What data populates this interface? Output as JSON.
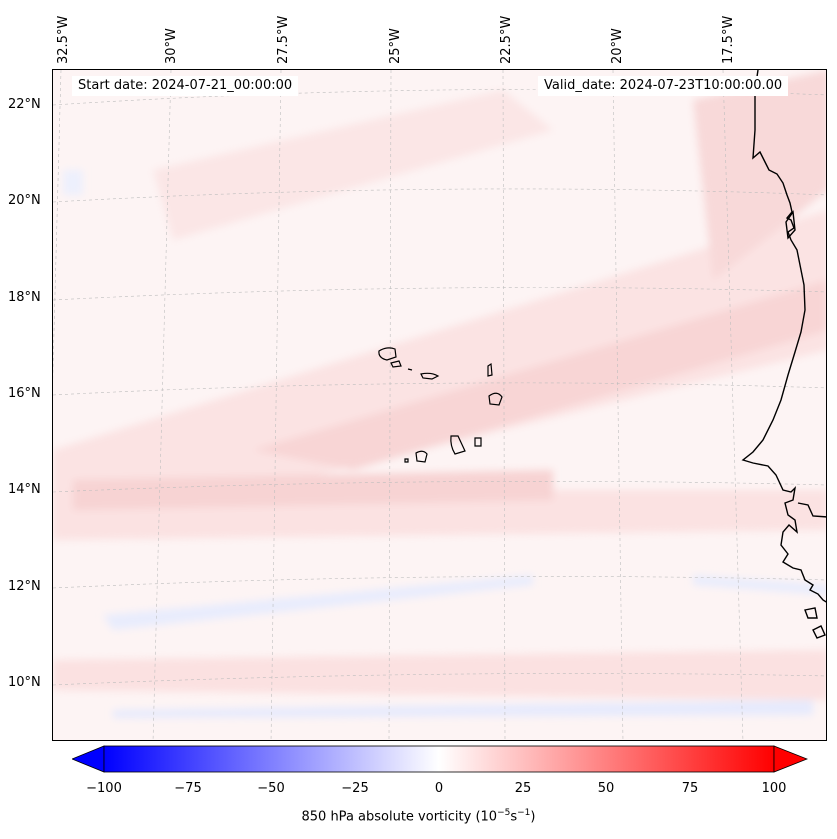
{
  "header": {
    "start_date": "Start date: 2024-07-21_00:00:00",
    "valid_date": "Valid_date: 2024-07-23T10:00:00.00"
  },
  "map": {
    "longitude_labels": [
      "32.5°W",
      "30°W",
      "27.5°W",
      "25°W",
      "22.5°W",
      "20°W",
      "17.5°W"
    ],
    "latitude_labels": [
      "22°N",
      "20°N",
      "18°N",
      "16°N",
      "14°N",
      "12°N",
      "10°N"
    ],
    "projection": "conic",
    "gridlines": "dashed gray",
    "coastline_color": "#000000",
    "islands": "Cabo Verde",
    "coast": "West African coast"
  },
  "colorbar": {
    "ticks": [
      "−100",
      "−75",
      "−50",
      "−25",
      "0",
      "25",
      "50",
      "75",
      "100"
    ],
    "label_main": "850 hPa absolute vorticity (10",
    "label_exp1": "−5",
    "label_mid": "s",
    "label_exp2": "−1",
    "label_end": ")",
    "colormap": "bwr",
    "min_color": "#0000ff",
    "mid_color": "#ffffff",
    "max_color": "#ff0000",
    "range": [
      -100,
      100
    ],
    "extend": "both"
  }
}
